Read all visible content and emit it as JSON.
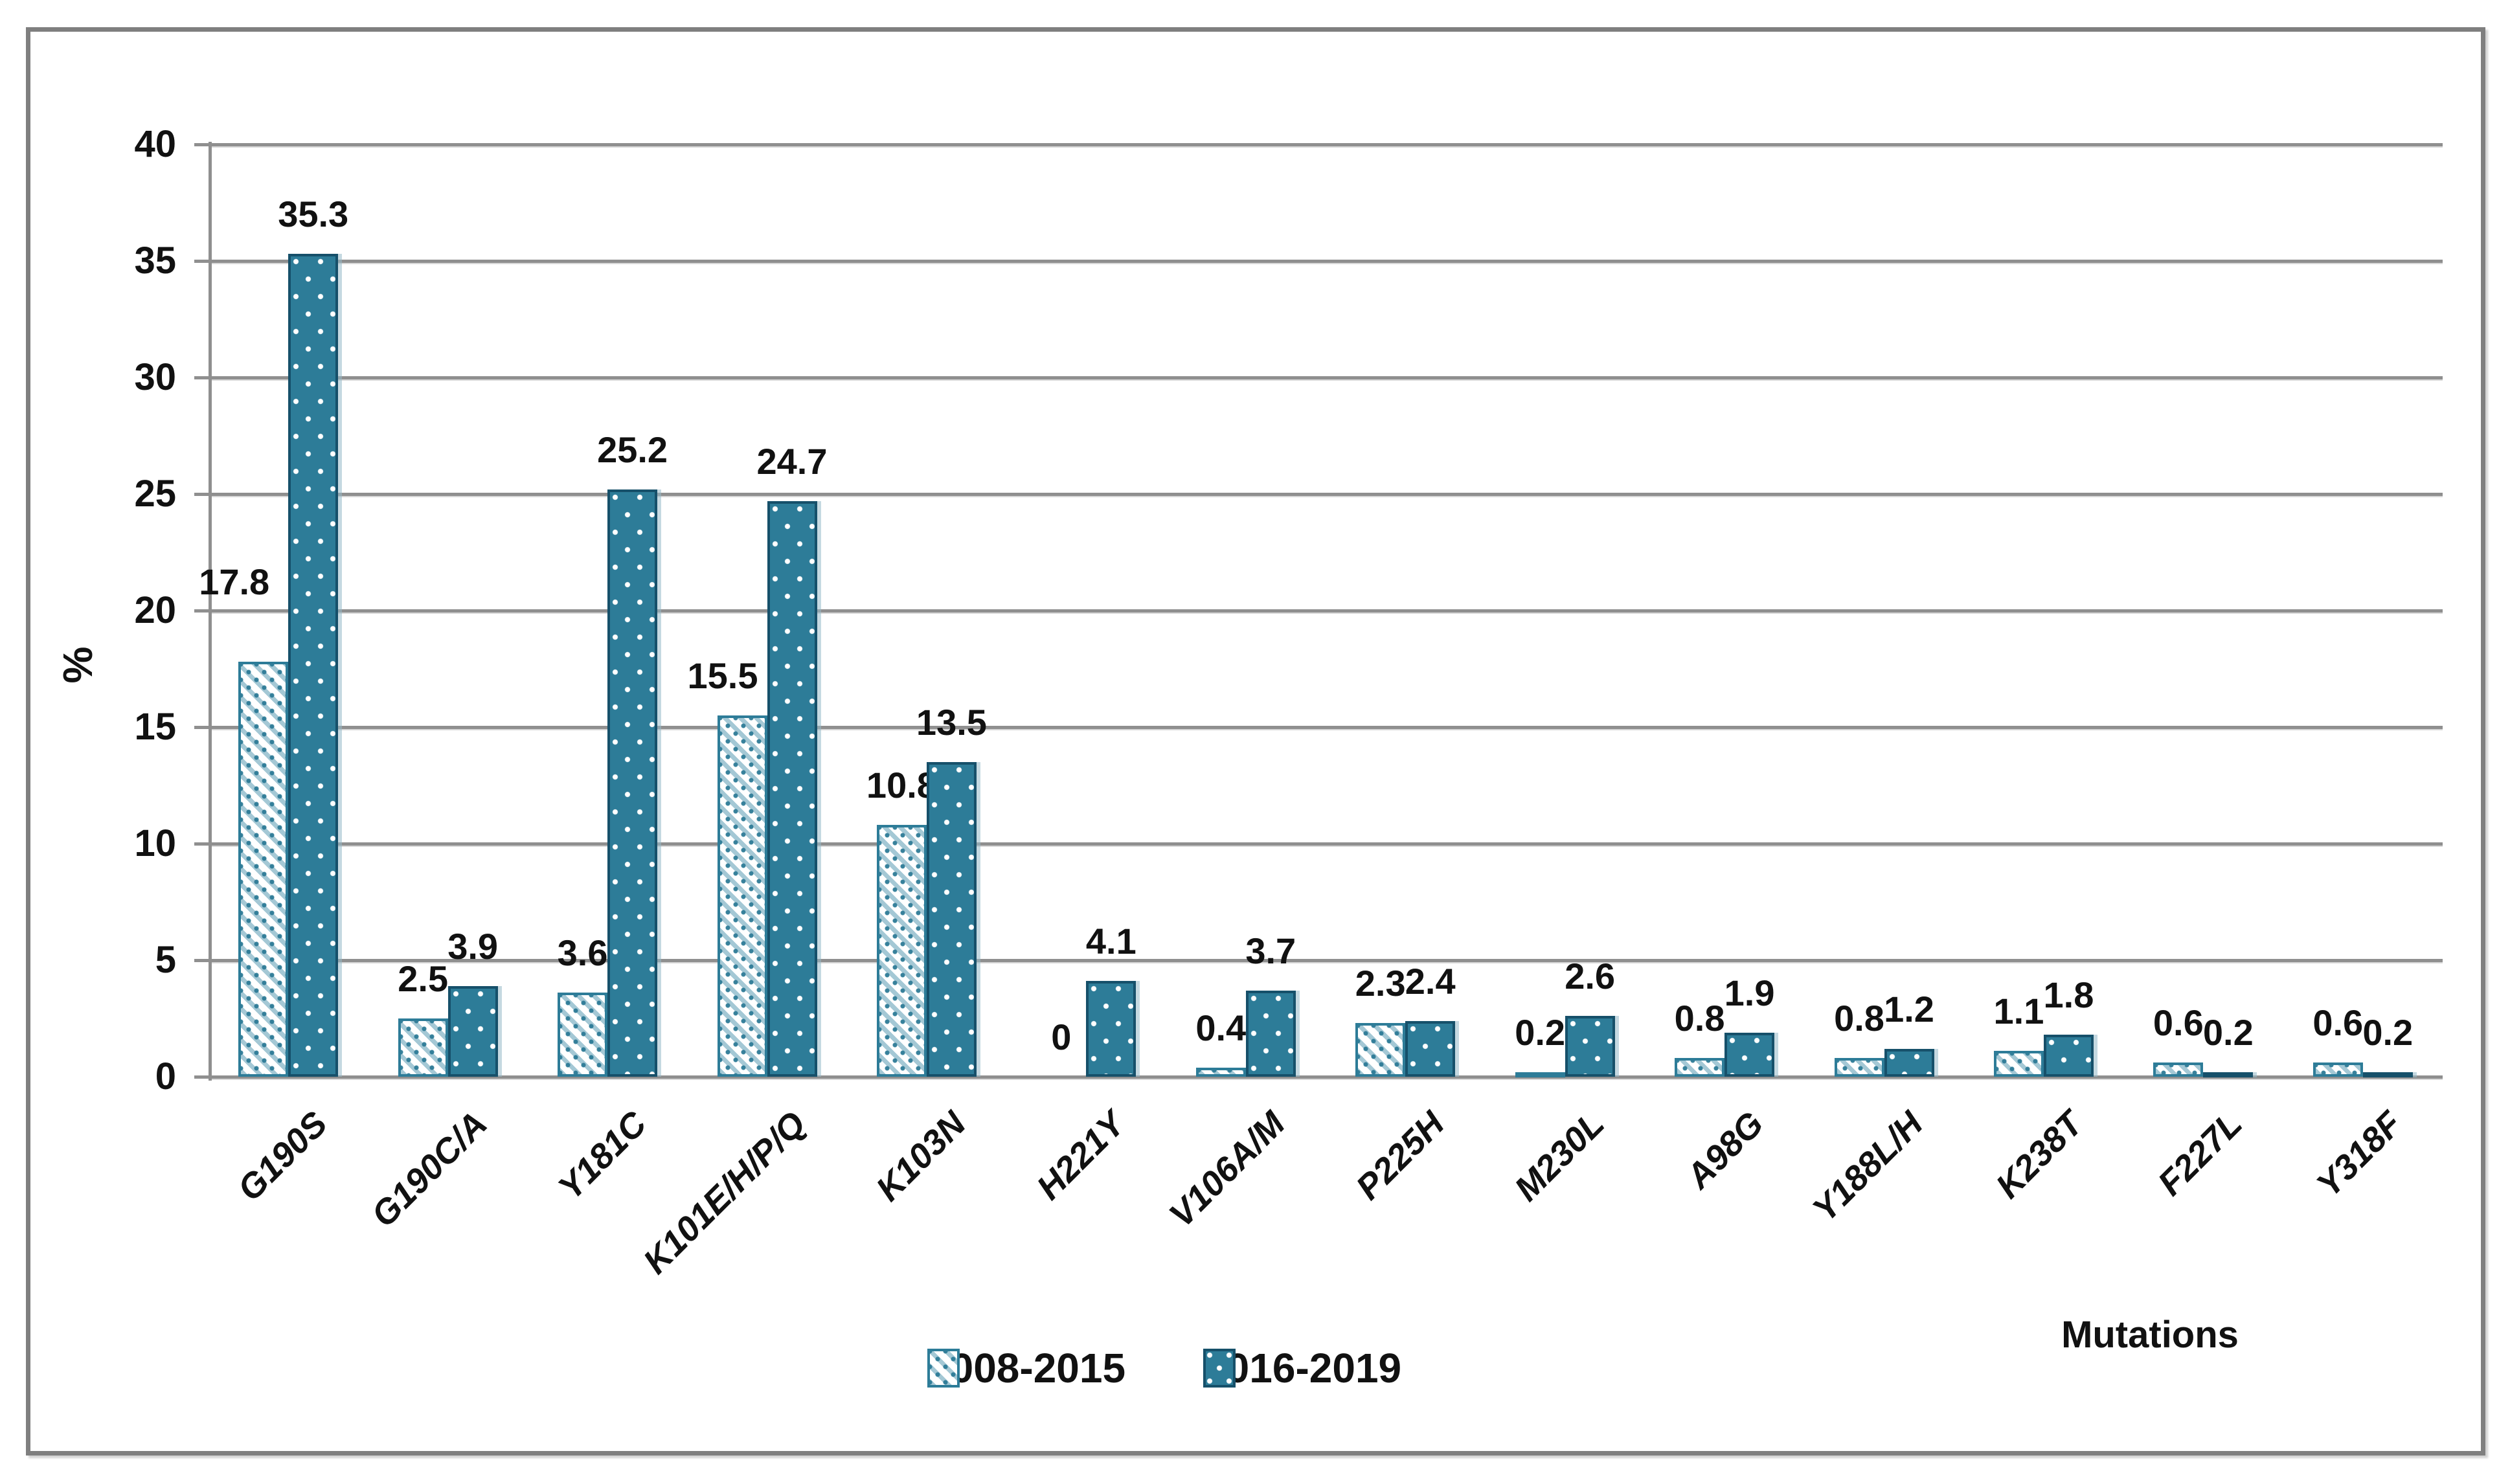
{
  "figure": {
    "y_axis_title": "%",
    "x_axis_title": "Mutations"
  },
  "legend": [
    {
      "label": "2008-2015",
      "swatch": "hatched-diagonal"
    },
    {
      "label": "2016-2019",
      "swatch": "solid-dotted"
    }
  ],
  "chart_data": {
    "type": "bar",
    "title": "",
    "xlabel": "Mutations",
    "ylabel": "%",
    "ylim": [
      0,
      40
    ],
    "yticks": [
      0,
      5,
      10,
      15,
      20,
      25,
      30,
      35,
      40
    ],
    "grid": true,
    "legend_position": "bottom-center",
    "categories": [
      "G190S",
      "G190C/A",
      "Y181C",
      "K101E/H/P/Q",
      "K103N",
      "H221Y",
      "V106A/M",
      "P225H",
      "M230L",
      "A98G",
      "Y188L/H",
      "K238T",
      "F227L",
      "Y318F"
    ],
    "series": [
      {
        "name": "2008-2015",
        "pattern": "hatched-diagonal",
        "values": [
          17.8,
          2.5,
          3.6,
          15.5,
          10.8,
          0,
          0.4,
          2.3,
          0.2,
          0.8,
          0.8,
          1.1,
          0.6,
          0.6
        ]
      },
      {
        "name": "2016-2019",
        "pattern": "solid-dotted",
        "values": [
          35.3,
          3.9,
          25.2,
          24.7,
          13.5,
          4.1,
          3.7,
          2.4,
          2.6,
          1.9,
          1.2,
          1.8,
          0.2,
          0.2
        ]
      }
    ],
    "colors": {
      "teal_fill": "#2d7c98",
      "teal_border": "#16506a",
      "hatch_stripe": "#a4c8d5",
      "gridline": "#8f8f8f",
      "text": "#111111",
      "frame": "#7f7f7f",
      "background": "#ffffff"
    }
  }
}
